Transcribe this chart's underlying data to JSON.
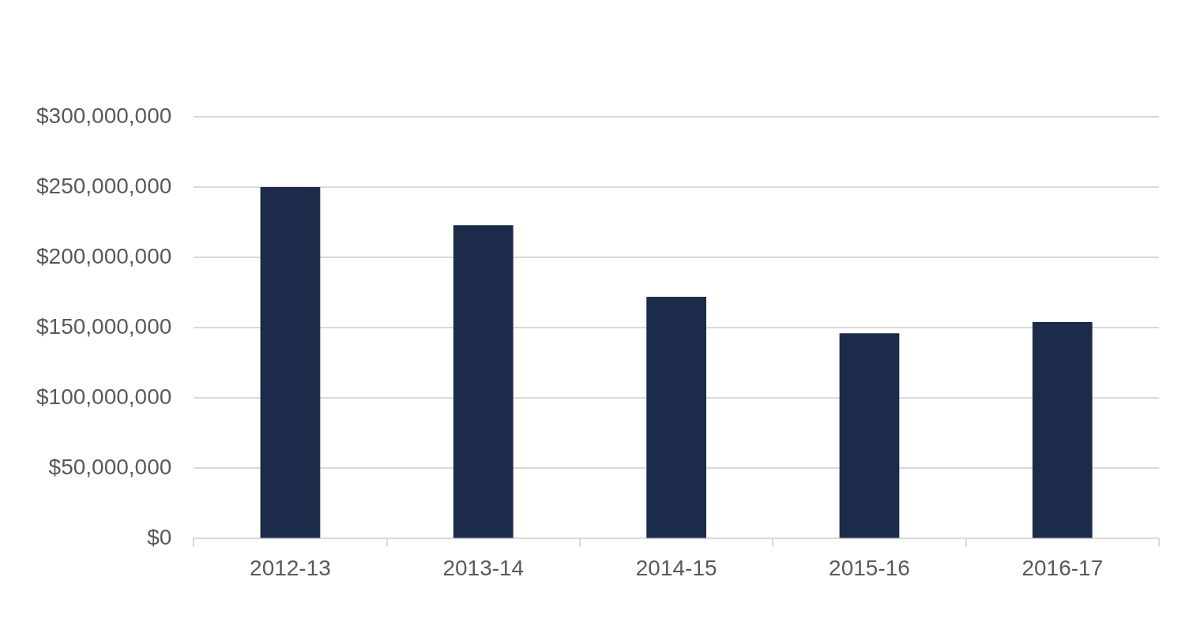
{
  "chart_data": {
    "type": "bar",
    "categories": [
      "2012-13",
      "2013-14",
      "2014-15",
      "2015-16",
      "2016-17"
    ],
    "values": [
      250000000,
      223000000,
      172000000,
      146000000,
      154000000
    ],
    "color": "#1c2b4a",
    "ylim": [
      0,
      300000000
    ],
    "yticks": [
      {
        "value": 0,
        "label": "$0"
      },
      {
        "value": 50000000,
        "label": "$50,000,000"
      },
      {
        "value": 100000000,
        "label": "$100,000,000"
      },
      {
        "value": 150000000,
        "label": "$150,000,000"
      },
      {
        "value": 200000000,
        "label": "$200,000,000"
      },
      {
        "value": 250000000,
        "label": "$250,000,000"
      },
      {
        "value": 300000000,
        "label": "$300,000,000"
      }
    ],
    "grid": "y",
    "legend": false
  }
}
